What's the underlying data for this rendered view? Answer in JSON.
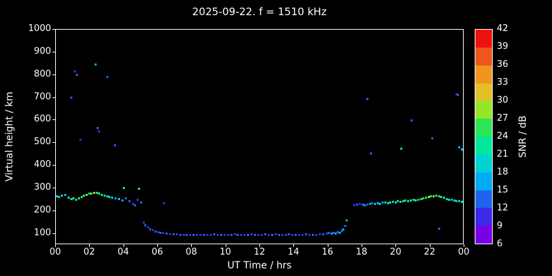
{
  "title": "2025-09-22. f = 1510 kHz",
  "axes": {
    "xlabel": "UT Time / hrs",
    "ylabel": "Virtual height / km",
    "x_ticks": [
      "00",
      "02",
      "04",
      "06",
      "08",
      "10",
      "12",
      "14",
      "16",
      "18",
      "20",
      "22",
      "00"
    ],
    "y_ticks": [
      100,
      200,
      300,
      400,
      500,
      600,
      700,
      800,
      900,
      1000
    ]
  },
  "colorbar": {
    "label": "SNR / dB",
    "ticks": [
      6,
      9,
      12,
      15,
      18,
      21,
      24,
      27,
      30,
      33,
      36,
      39,
      42
    ],
    "min": 6,
    "max": 42,
    "segments": [
      {
        "max": 9,
        "color": "#7a00e6"
      },
      {
        "max": 12,
        "color": "#3c28e6"
      },
      {
        "max": 15,
        "color": "#1e64f0"
      },
      {
        "max": 18,
        "color": "#00aaf0"
      },
      {
        "max": 21,
        "color": "#00d2d2"
      },
      {
        "max": 24,
        "color": "#00e69b"
      },
      {
        "max": 27,
        "color": "#2ee655"
      },
      {
        "max": 30,
        "color": "#96e628"
      },
      {
        "max": 33,
        "color": "#e6be28"
      },
      {
        "max": 36,
        "color": "#f0961e"
      },
      {
        "max": 39,
        "color": "#f0551e"
      },
      {
        "max": 42,
        "color": "#ee1111"
      }
    ]
  },
  "chart_data": {
    "type": "scatter",
    "title": "2025-09-22. f = 1510 kHz",
    "xlabel": "UT Time / hrs",
    "ylabel": "Virtual height / km",
    "zlabel": "SNR / dB",
    "xlim": [
      0,
      24
    ],
    "ylim": [
      50,
      1000
    ],
    "zlim": [
      6,
      42
    ],
    "grid": false,
    "point_format": "[ut_hours, virtual_height_km, snr_db]",
    "points": [
      [
        0.05,
        265,
        21
      ],
      [
        0.2,
        263,
        24
      ],
      [
        0.35,
        268,
        21
      ],
      [
        0.55,
        270,
        18
      ],
      [
        0.75,
        258,
        24
      ],
      [
        0.9,
        252,
        24
      ],
      [
        1.05,
        255,
        27
      ],
      [
        1.2,
        250,
        21
      ],
      [
        1.35,
        256,
        27
      ],
      [
        1.5,
        262,
        24
      ],
      [
        1.65,
        268,
        27
      ],
      [
        1.8,
        272,
        30
      ],
      [
        1.95,
        276,
        24
      ],
      [
        2.1,
        278,
        27
      ],
      [
        2.25,
        281,
        33
      ],
      [
        2.4,
        279,
        24
      ],
      [
        2.55,
        276,
        27
      ],
      [
        2.7,
        272,
        24
      ],
      [
        2.85,
        268,
        27
      ],
      [
        3.0,
        265,
        21
      ],
      [
        3.15,
        262,
        24
      ],
      [
        3.3,
        258,
        21
      ],
      [
        3.5,
        256,
        18
      ],
      [
        3.7,
        252,
        21
      ],
      [
        3.9,
        246,
        18
      ],
      [
        4.1,
        256,
        15
      ],
      [
        4.3,
        242,
        15
      ],
      [
        4.5,
        232,
        12
      ],
      [
        4.65,
        226,
        15
      ],
      [
        0.9,
        700,
        15
      ],
      [
        1.1,
        815,
        12
      ],
      [
        1.25,
        800,
        15
      ],
      [
        1.45,
        515,
        12
      ],
      [
        2.35,
        845,
        18
      ],
      [
        2.45,
        565,
        15
      ],
      [
        2.55,
        552,
        12
      ],
      [
        3.0,
        790,
        15
      ],
      [
        3.45,
        490,
        15
      ],
      [
        4.0,
        300,
        24
      ],
      [
        4.8,
        248,
        12
      ],
      [
        4.9,
        298,
        27
      ],
      [
        5.0,
        236,
        15
      ],
      [
        5.15,
        150,
        12
      ],
      [
        5.25,
        138,
        15
      ],
      [
        5.4,
        128,
        12
      ],
      [
        5.55,
        120,
        15
      ],
      [
        5.7,
        114,
        12
      ],
      [
        5.85,
        110,
        15
      ],
      [
        6.0,
        106,
        12
      ],
      [
        6.15,
        104,
        15
      ],
      [
        6.3,
        102,
        12
      ],
      [
        6.35,
        235,
        12
      ],
      [
        6.5,
        100,
        15
      ],
      [
        6.7,
        98,
        12
      ],
      [
        6.9,
        97,
        15
      ],
      [
        7.1,
        96,
        12
      ],
      [
        7.3,
        95,
        15
      ],
      [
        7.5,
        94,
        12
      ],
      [
        7.7,
        95,
        15
      ],
      [
        7.9,
        94,
        12
      ],
      [
        8.1,
        95,
        15
      ],
      [
        8.3,
        94,
        12
      ],
      [
        8.5,
        95,
        12
      ],
      [
        8.7,
        94,
        15
      ],
      [
        8.9,
        95,
        12
      ],
      [
        9.1,
        94,
        12
      ],
      [
        9.3,
        96,
        15
      ],
      [
        9.5,
        95,
        12
      ],
      [
        9.7,
        94,
        15
      ],
      [
        9.9,
        95,
        12
      ],
      [
        10.1,
        94,
        12
      ],
      [
        10.3,
        95,
        15
      ],
      [
        10.5,
        96,
        12
      ],
      [
        10.7,
        95,
        15
      ],
      [
        10.9,
        94,
        12
      ],
      [
        11.1,
        95,
        12
      ],
      [
        11.3,
        94,
        15
      ],
      [
        11.5,
        96,
        12
      ],
      [
        11.7,
        95,
        15
      ],
      [
        11.9,
        94,
        12
      ],
      [
        12.1,
        95,
        12
      ],
      [
        12.3,
        96,
        15
      ],
      [
        12.5,
        94,
        12
      ],
      [
        12.7,
        95,
        15
      ],
      [
        12.9,
        96,
        12
      ],
      [
        13.1,
        95,
        15
      ],
      [
        13.3,
        94,
        12
      ],
      [
        13.5,
        95,
        12
      ],
      [
        13.7,
        96,
        15
      ],
      [
        13.9,
        94,
        12
      ],
      [
        14.1,
        95,
        15
      ],
      [
        14.3,
        94,
        12
      ],
      [
        14.5,
        95,
        12
      ],
      [
        14.7,
        96,
        15
      ],
      [
        14.9,
        95,
        12
      ],
      [
        15.1,
        94,
        15
      ],
      [
        15.3,
        95,
        12
      ],
      [
        15.5,
        96,
        12
      ],
      [
        15.7,
        97,
        15
      ],
      [
        15.9,
        100,
        12
      ],
      [
        16.05,
        102,
        15
      ],
      [
        16.2,
        99,
        18
      ],
      [
        16.3,
        104,
        15
      ],
      [
        16.45,
        101,
        18
      ],
      [
        16.55,
        107,
        15
      ],
      [
        16.7,
        104,
        18
      ],
      [
        16.8,
        112,
        15
      ],
      [
        16.9,
        120,
        18
      ],
      [
        17.0,
        135,
        15
      ],
      [
        17.1,
        158,
        18
      ],
      [
        17.55,
        224,
        12
      ],
      [
        17.7,
        227,
        15
      ],
      [
        17.85,
        230,
        12
      ],
      [
        18.0,
        228,
        15
      ],
      [
        18.15,
        225,
        18
      ],
      [
        18.3,
        229,
        15
      ],
      [
        18.45,
        231,
        18
      ],
      [
        18.6,
        233,
        15
      ],
      [
        18.75,
        230,
        21
      ],
      [
        18.9,
        234,
        18
      ],
      [
        19.05,
        232,
        21
      ],
      [
        19.2,
        236,
        18
      ],
      [
        19.35,
        238,
        21
      ],
      [
        19.5,
        235,
        24
      ],
      [
        19.65,
        237,
        21
      ],
      [
        19.8,
        240,
        24
      ],
      [
        19.95,
        238,
        21
      ],
      [
        20.1,
        242,
        24
      ],
      [
        20.25,
        240,
        27
      ],
      [
        20.4,
        243,
        24
      ],
      [
        20.55,
        245,
        21
      ],
      [
        20.7,
        242,
        24
      ],
      [
        20.85,
        246,
        27
      ],
      [
        21.0,
        248,
        24
      ],
      [
        21.15,
        246,
        27
      ],
      [
        21.3,
        250,
        24
      ],
      [
        21.45,
        253,
        27
      ],
      [
        21.6,
        256,
        24
      ],
      [
        21.75,
        260,
        27
      ],
      [
        21.9,
        262,
        30
      ],
      [
        22.05,
        264,
        27
      ],
      [
        22.2,
        266,
        30
      ],
      [
        22.35,
        268,
        27
      ],
      [
        22.5,
        266,
        24
      ],
      [
        22.65,
        262,
        27
      ],
      [
        22.8,
        258,
        24
      ],
      [
        22.95,
        254,
        21
      ],
      [
        23.1,
        250,
        24
      ],
      [
        23.25,
        248,
        21
      ],
      [
        23.4,
        246,
        24
      ],
      [
        23.55,
        244,
        21
      ],
      [
        23.7,
        243,
        24
      ],
      [
        23.85,
        241,
        21
      ],
      [
        23.95,
        240,
        24
      ],
      [
        18.3,
        695,
        15
      ],
      [
        18.5,
        452,
        15
      ],
      [
        20.3,
        476,
        21
      ],
      [
        20.9,
        600,
        15
      ],
      [
        22.1,
        520,
        15
      ],
      [
        23.55,
        714,
        12
      ],
      [
        23.62,
        712,
        15
      ],
      [
        23.7,
        482,
        18
      ],
      [
        23.85,
        472,
        21
      ],
      [
        23.95,
        470,
        18
      ],
      [
        22.5,
        122,
        15
      ]
    ]
  }
}
